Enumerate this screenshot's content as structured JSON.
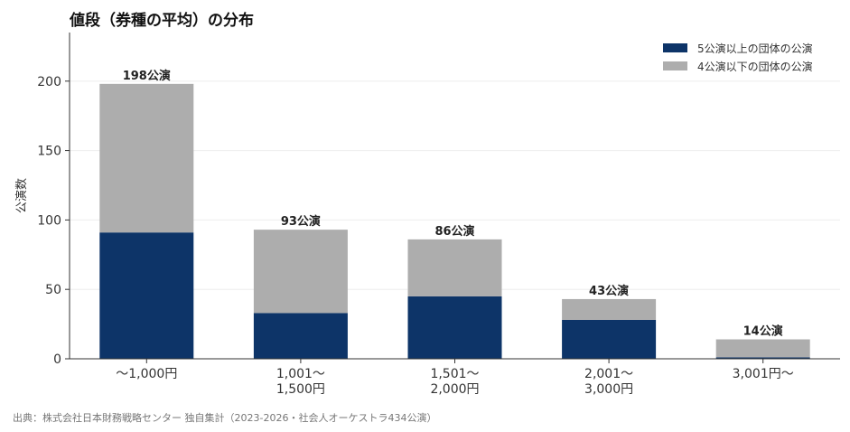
{
  "title": "値段（券種の平均）の分布",
  "source": "出典：株式会社日本財務戦略センター 独自集計（2023-2026・社会人オーケストラ434公演）",
  "colors": {
    "series5plus": "#0d3468",
    "series4minus": "#adadad",
    "grid": "#eeeeee",
    "axis": "#333333"
  },
  "chart_data": {
    "type": "bar",
    "stacked": true,
    "ylabel": "公演数",
    "ylim": [
      0,
      235
    ],
    "yticks": [
      0,
      50,
      100,
      150,
      200
    ],
    "grid": true,
    "legend": "top-right",
    "categories": [
      [
        "〜1,000円"
      ],
      [
        "1,001〜",
        "1,500円"
      ],
      [
        "1,501〜",
        "2,000円"
      ],
      [
        "2,001〜",
        "3,000円"
      ],
      [
        "3,001円〜"
      ]
    ],
    "series": [
      {
        "name": "5公演以上の団体の公演",
        "values": [
          91,
          33,
          45,
          28,
          1
        ]
      },
      {
        "name": "4公演以下の団体の公演",
        "values": [
          107,
          60,
          41,
          15,
          13
        ]
      }
    ],
    "totals": [
      "198公演",
      "93公演",
      "86公演",
      "43公演",
      "14公演"
    ]
  }
}
